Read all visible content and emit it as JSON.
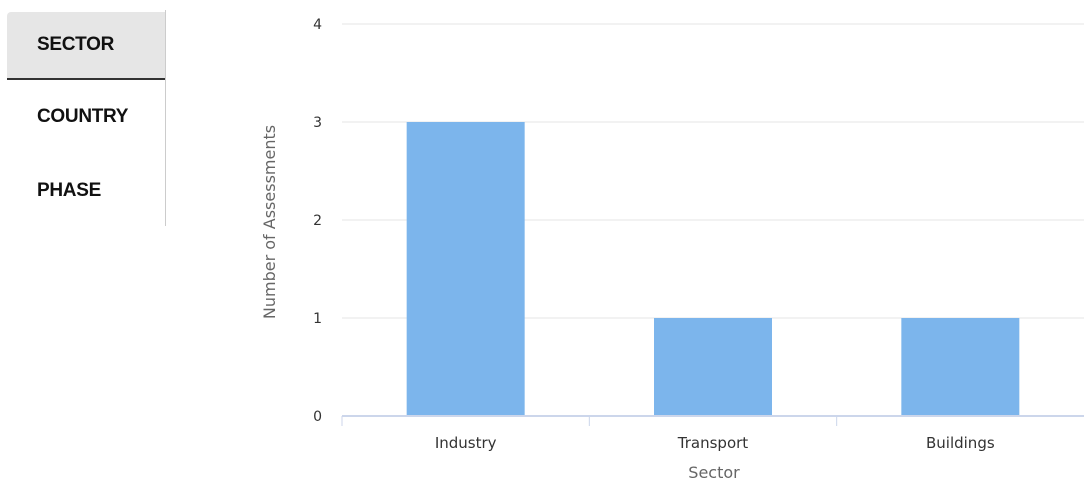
{
  "tabs": [
    {
      "label": "SECTOR",
      "active": true
    },
    {
      "label": "COUNTRY",
      "active": false
    },
    {
      "label": "PHASE",
      "active": false
    }
  ],
  "chart_data": {
    "type": "bar",
    "categories": [
      "Industry",
      "Transport",
      "Buildings"
    ],
    "values": [
      3,
      1,
      1
    ],
    "title": "",
    "xlabel": "Sector",
    "ylabel": "Number of Assessments",
    "ylim": [
      0,
      4
    ],
    "yticks": [
      0,
      1,
      2,
      3,
      4
    ],
    "grid": true,
    "bar_color": "#7cb5ec"
  }
}
